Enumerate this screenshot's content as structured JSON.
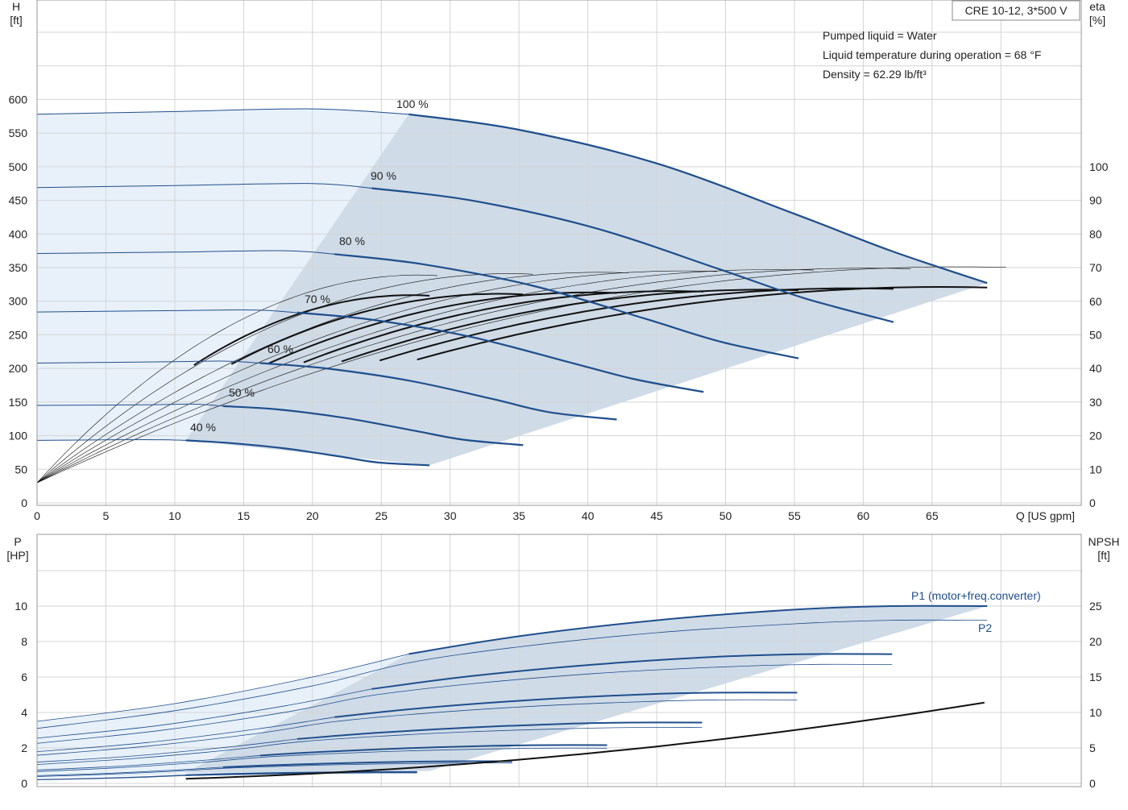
{
  "top_chart": {
    "title_box": "CRE 10-12, 3*500 V",
    "info_lines": [
      "Pumped liquid = Water",
      "Liquid temperature during operation = 68 °F",
      "Density = 62.29 lb/ft³"
    ],
    "y_left_label_1": "H",
    "y_left_label_2": "[ft]",
    "y_right_label_1": "eta",
    "y_right_label_2": "[%]",
    "x_label": "Q [US gpm]",
    "x_ticks": [
      "0",
      "5",
      "10",
      "15",
      "20",
      "25",
      "30",
      "35",
      "40",
      "45",
      "50",
      "55",
      "60",
      "65"
    ],
    "y_left_ticks": [
      "0",
      "50",
      "100",
      "150",
      "200",
      "250",
      "300",
      "350",
      "400",
      "450",
      "500",
      "550",
      "600"
    ],
    "y_right_ticks": [
      "0",
      "10",
      "20",
      "30",
      "40",
      "50",
      "60",
      "70",
      "80",
      "90",
      "100"
    ],
    "speed_labels": [
      "100 %",
      "90 %",
      "80 %",
      "70 %",
      "60 %",
      "50 %",
      "40 %"
    ]
  },
  "bottom_chart": {
    "y_left_label_1": "P",
    "y_left_label_2": "[HP]",
    "y_right_label_1": "NPSH",
    "y_right_label_2": "[ft]",
    "y_left_ticks": [
      "0",
      "2",
      "4",
      "6",
      "8",
      "10"
    ],
    "y_right_ticks": [
      "0",
      "5",
      "10",
      "15",
      "20",
      "25"
    ],
    "p1_label": "P1 (motor+freq.converter)",
    "p2_label": "P2"
  },
  "colors": {
    "curve_blue": "#1f4e8c",
    "fill_light": "#e8f1fa",
    "fill_dark": "#cfdbe7",
    "eta_line": "#111111"
  },
  "chart_data": [
    {
      "type": "line",
      "title": "CRE 10-12, 3*500 V",
      "xlabel": "Q [US gpm]",
      "ylabel": "H [ft]",
      "y2label": "eta [%]",
      "xlim": [
        0,
        70
      ],
      "ylim": [
        0,
        600
      ],
      "y2lim": [
        0,
        120
      ],
      "series": [
        {
          "name": "100 %",
          "x": [
            0,
            10,
            20,
            27,
            35,
            45,
            55,
            62,
            69
          ],
          "y": [
            578,
            582,
            586,
            578,
            555,
            505,
            430,
            375,
            327
          ]
        },
        {
          "name": "90 %",
          "x": [
            0,
            10,
            20,
            24.3,
            31.5,
            40.5,
            49.5,
            55.8,
            62.2
          ],
          "y": [
            469,
            472,
            475,
            468,
            450,
            409,
            348,
            304,
            269
          ]
        },
        {
          "name": "80 %",
          "x": [
            0,
            10,
            18,
            21.6,
            28,
            36,
            44,
            49.6,
            55.3
          ],
          "y": [
            371,
            373,
            375,
            370,
            355,
            323,
            275,
            240,
            215
          ]
        },
        {
          "name": "70 %",
          "x": [
            0,
            10,
            15.7,
            18.9,
            24.5,
            31.5,
            38.5,
            43.4,
            48.4
          ],
          "y": [
            284,
            286,
            287,
            283,
            272,
            247,
            210,
            184,
            165
          ]
        },
        {
          "name": "60 %",
          "x": [
            0,
            10,
            13.5,
            16.2,
            21,
            27,
            33,
            37.2,
            42.1
          ],
          "y": [
            208,
            210,
            211,
            208,
            200,
            182,
            155,
            135,
            124
          ]
        },
        {
          "name": "50 %",
          "x": [
            0,
            8,
            11.3,
            13.5,
            17.5,
            22.5,
            27.5,
            31,
            35.3
          ],
          "y": [
            145,
            146,
            147,
            144,
            139,
            126,
            107,
            94,
            86
          ]
        },
        {
          "name": "40 %",
          "x": [
            0,
            6,
            9,
            10.8,
            14,
            18,
            22,
            24.8,
            28.5
          ],
          "y": [
            93,
            94,
            94,
            93,
            89,
            81,
            69,
            60,
            56
          ]
        }
      ]
    },
    {
      "type": "line",
      "xlabel": "Q [US gpm]",
      "ylabel": "P [HP]",
      "y2label": "NPSH [ft]",
      "xlim": [
        0,
        70
      ],
      "ylim": [
        0,
        12
      ],
      "y2lim": [
        0,
        30
      ],
      "series": [
        {
          "name": "P1 (motor+freq.converter)",
          "x": [
            0,
            10,
            20,
            27,
            35,
            45,
            55,
            62,
            69
          ],
          "y": [
            3.5,
            4.5,
            6.0,
            7.3,
            8.3,
            9.2,
            9.8,
            10.0,
            10.0
          ]
        },
        {
          "name": "P2",
          "x": [
            0,
            10,
            20,
            27,
            35,
            45,
            55,
            62,
            69
          ],
          "y": [
            3.1,
            4.1,
            5.5,
            6.8,
            7.7,
            8.5,
            9.0,
            9.2,
            9.2
          ]
        }
      ]
    }
  ]
}
